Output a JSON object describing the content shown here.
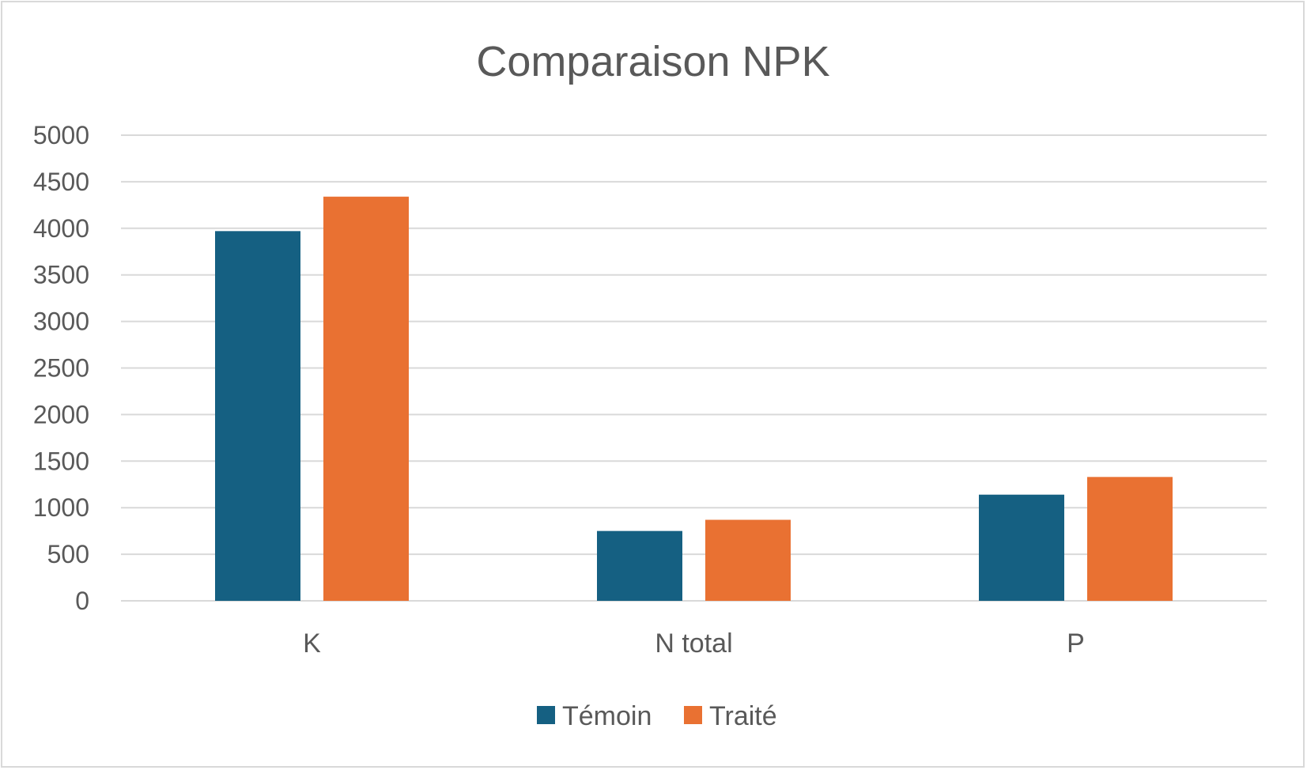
{
  "chart_data": {
    "type": "bar",
    "title": "Comparaison NPK",
    "xlabel": "",
    "ylabel": "",
    "categories": [
      "K",
      "N total",
      "P"
    ],
    "series": [
      {
        "name": "Témoin",
        "values": [
          3970,
          750,
          1140
        ],
        "color": "#156082"
      },
      {
        "name": "Traité",
        "values": [
          4340,
          870,
          1330
        ],
        "color": "#E97132"
      }
    ],
    "ylim": [
      0,
      5000
    ],
    "yticks": [
      "0",
      "500",
      "1000",
      "1500",
      "2000",
      "2500",
      "3000",
      "3500",
      "4000",
      "4500",
      "5000"
    ],
    "grid": true,
    "legend": "bottom-center"
  }
}
